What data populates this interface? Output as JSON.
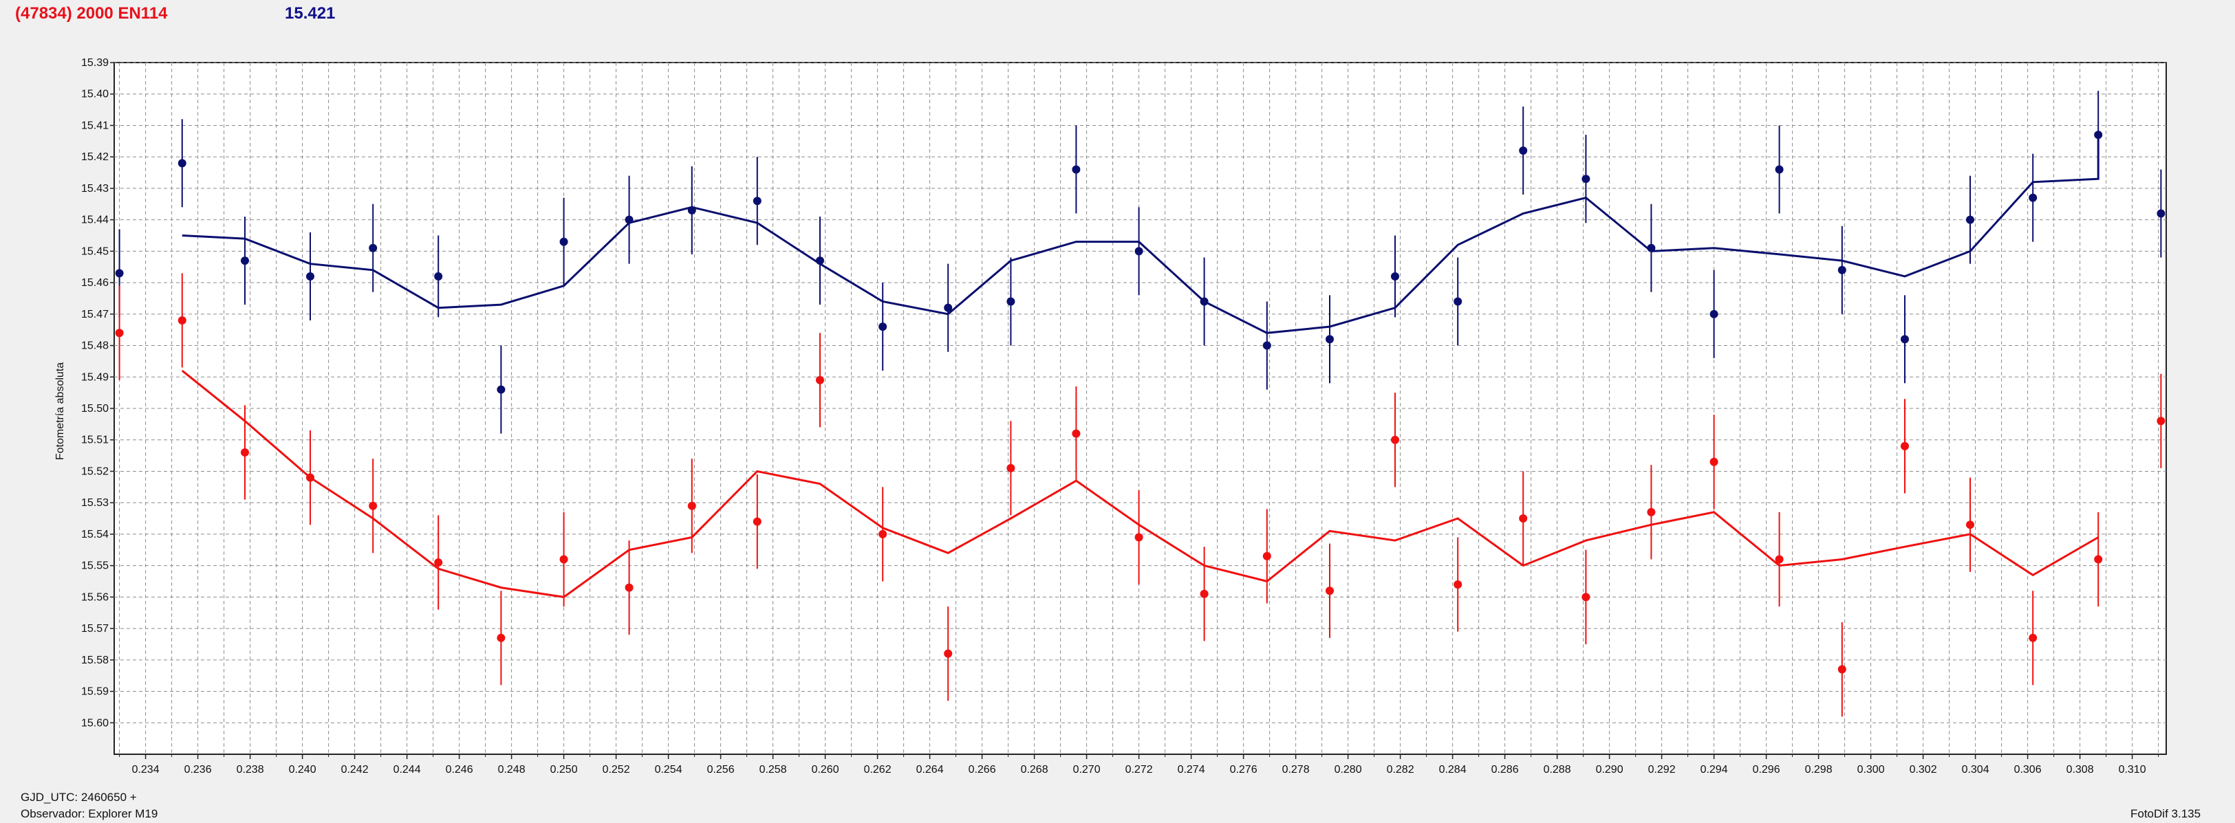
{
  "header": {
    "object": "(47834) 2000 EN114",
    "magnitude": "15.421"
  },
  "footer": {
    "jd": "GJD_UTC: 2460650 +",
    "observer": "Observador: Explorer M19",
    "version": "FotoDif 3.135"
  },
  "colors": {
    "blue": "#0a0f6e",
    "red": "#f01010",
    "background": "#f0f0f0",
    "plot_bg": "#ffffff",
    "grid": "#8c8c8c"
  },
  "chart_data": {
    "type": "scatter",
    "title": "(47834) 2000 EN114",
    "ylabel": "Fotometría absoluta",
    "xlim": [
      0.2328,
      0.3113
    ],
    "ylim": [
      15.39,
      15.61
    ],
    "y_inverted": true,
    "grid": true,
    "x_ticks": [
      "0.234",
      "0.236",
      "0.238",
      "0.240",
      "0.242",
      "0.244",
      "0.246",
      "0.248",
      "0.250",
      "0.252",
      "0.254",
      "0.256",
      "0.258",
      "0.260",
      "0.262",
      "0.264",
      "0.266",
      "0.268",
      "0.270",
      "0.272",
      "0.274",
      "0.276",
      "0.278",
      "0.280",
      "0.282",
      "0.284",
      "0.286",
      "0.288",
      "0.290",
      "0.292",
      "0.294",
      "0.296",
      "0.298",
      "0.300",
      "0.302",
      "0.304",
      "0.306",
      "0.308",
      "0.310"
    ],
    "y_ticks": [
      "15.39",
      "15.40",
      "15.41",
      "15.42",
      "15.43",
      "15.44",
      "15.45",
      "15.46",
      "15.47",
      "15.48",
      "15.49",
      "15.50",
      "15.51",
      "15.52",
      "15.53",
      "15.54",
      "15.55",
      "15.56",
      "15.57",
      "15.58",
      "15.59",
      "15.60"
    ],
    "series": [
      {
        "color": "#0a0f6e",
        "x": [
          0.233,
          0.2354,
          0.2378,
          0.2403,
          0.2427,
          0.2452,
          0.2476,
          0.25,
          0.2525,
          0.2549,
          0.2574,
          0.2598,
          0.2622,
          0.2647,
          0.2671,
          0.2696,
          0.272,
          0.2745,
          0.2769,
          0.2793,
          0.2818,
          0.2842,
          0.2867,
          0.2891,
          0.2916,
          0.294,
          0.2965,
          0.2989,
          0.3013,
          0.3038,
          0.3062,
          0.3087,
          0.3111
        ],
        "y": [
          15.457,
          15.422,
          15.453,
          15.458,
          15.449,
          15.458,
          15.494,
          15.447,
          15.44,
          15.437,
          15.434,
          15.453,
          15.474,
          15.468,
          15.466,
          15.424,
          15.45,
          15.466,
          15.48,
          15.478,
          15.458,
          15.466,
          15.418,
          15.427,
          15.449,
          15.47,
          15.424,
          15.456,
          15.478,
          15.44,
          15.433,
          15.413,
          15.438
        ],
        "err": [
          0.014,
          0.014,
          0.014,
          0.014,
          0.014,
          0.013,
          0.014,
          0.014,
          0.014,
          0.014,
          0.014,
          0.014,
          0.014,
          0.014,
          0.014,
          0.014,
          0.014,
          0.014,
          0.014,
          0.014,
          0.013,
          0.014,
          0.014,
          0.014,
          0.014,
          0.014,
          0.014,
          0.014,
          0.014,
          0.014,
          0.014,
          0.014,
          0.014
        ],
        "trend_x": [
          0.2354,
          0.2378,
          0.2403,
          0.2427,
          0.2452,
          0.2476,
          0.25,
          0.2525,
          0.2549,
          0.2574,
          0.2598,
          0.2622,
          0.2647,
          0.2671,
          0.2696,
          0.272,
          0.2745,
          0.2769,
          0.2793,
          0.2818,
          0.2842,
          0.2867,
          0.2891,
          0.2916,
          0.294,
          0.2965,
          0.2989,
          0.3013,
          0.3038,
          0.3062,
          0.3087,
          0.3087
        ],
        "trend_y": [
          15.445,
          15.446,
          15.454,
          15.456,
          15.468,
          15.467,
          15.461,
          15.441,
          15.436,
          15.441,
          15.454,
          15.466,
          15.47,
          15.453,
          15.447,
          15.447,
          15.466,
          15.476,
          15.474,
          15.468,
          15.448,
          15.438,
          15.433,
          15.45,
          15.449,
          15.451,
          15.453,
          15.458,
          15.45,
          15.428,
          15.427,
          15.413
        ]
      },
      {
        "color": "#f01010",
        "x": [
          0.233,
          0.2354,
          0.2378,
          0.2403,
          0.2427,
          0.2452,
          0.2476,
          0.25,
          0.2525,
          0.2549,
          0.2574,
          0.2598,
          0.2622,
          0.2647,
          0.2671,
          0.2696,
          0.272,
          0.2745,
          0.2769,
          0.2793,
          0.2818,
          0.2842,
          0.2867,
          0.2891,
          0.2916,
          0.294,
          0.2965,
          0.2989,
          0.3013,
          0.3038,
          0.3062,
          0.3087,
          0.3111
        ],
        "y": [
          15.476,
          15.472,
          15.514,
          15.522,
          15.531,
          15.549,
          15.573,
          15.548,
          15.557,
          15.531,
          15.536,
          15.491,
          15.54,
          15.578,
          15.519,
          15.508,
          15.541,
          15.559,
          15.547,
          15.558,
          15.51,
          15.556,
          15.535,
          15.56,
          15.533,
          15.517,
          15.548,
          15.583,
          15.512,
          15.537,
          15.573,
          15.548,
          15.504
        ],
        "err": [
          0.015,
          0.015,
          0.015,
          0.015,
          0.015,
          0.015,
          0.015,
          0.015,
          0.015,
          0.015,
          0.015,
          0.015,
          0.015,
          0.015,
          0.015,
          0.015,
          0.015,
          0.015,
          0.015,
          0.015,
          0.015,
          0.015,
          0.015,
          0.015,
          0.015,
          0.015,
          0.015,
          0.015,
          0.015,
          0.015,
          0.015,
          0.015,
          0.015
        ],
        "trend_x": [
          0.2354,
          0.2378,
          0.2403,
          0.2427,
          0.2452,
          0.2476,
          0.25,
          0.2525,
          0.2549,
          0.2574,
          0.2598,
          0.2622,
          0.2647,
          0.2671,
          0.2696,
          0.272,
          0.2745,
          0.2769,
          0.2793,
          0.2818,
          0.2842,
          0.2867,
          0.2891,
          0.2916,
          0.294,
          0.2965,
          0.2989,
          0.3013,
          0.3038,
          0.3062,
          0.3087
        ],
        "trend_y": [
          15.488,
          15.504,
          15.522,
          15.535,
          15.551,
          15.557,
          15.56,
          15.545,
          15.541,
          15.52,
          15.524,
          15.538,
          15.546,
          15.535,
          15.523,
          15.537,
          15.55,
          15.555,
          15.539,
          15.542,
          15.535,
          15.55,
          15.542,
          15.537,
          15.533,
          15.55,
          15.548,
          15.544,
          15.54,
          15.553,
          15.541
        ]
      }
    ]
  }
}
